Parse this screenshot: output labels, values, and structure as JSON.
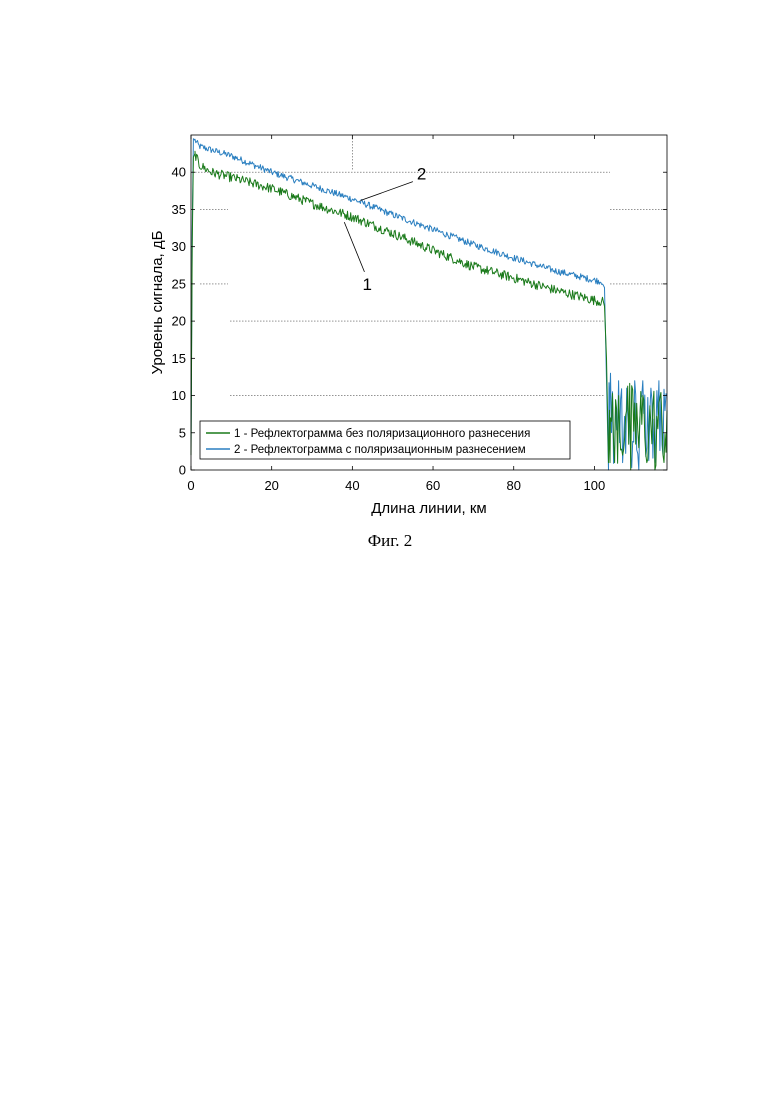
{
  "chart_data": {
    "type": "line",
    "xlabel": "Длина линии, км",
    "ylabel": "Уровень сигнала, дБ",
    "xlim": [
      0,
      118
    ],
    "ylim": [
      0,
      45
    ],
    "xticks": [
      "0",
      "20",
      "40",
      "60",
      "80",
      "100"
    ],
    "yticks": [
      "0",
      "5",
      "10",
      "15",
      "20",
      "25",
      "30",
      "35",
      "40"
    ],
    "grid": "dotted horizontal lines at 10, 20, 25, 35, 40; dotted vertical line at 40",
    "legend_position": "lower-left",
    "series": [
      {
        "name": "1 - Рефлектограмма без поляризационного разнесения",
        "color": "#1a7a1a",
        "x": [
          0,
          0.3,
          0.6,
          1,
          2,
          5,
          10,
          20,
          30,
          40,
          50,
          60,
          70,
          80,
          90,
          100,
          102,
          102.5,
          103,
          103.5,
          104,
          105,
          106,
          107,
          108,
          109,
          110,
          111,
          112,
          113,
          114,
          115,
          116,
          117,
          118
        ],
        "y": [
          2,
          30,
          42,
          42.5,
          41,
          40,
          39.3,
          37.8,
          35.8,
          34,
          31.8,
          29.5,
          27.3,
          25.8,
          24.2,
          22.8,
          22.6,
          22,
          15,
          1,
          7,
          1,
          10,
          2,
          8,
          0,
          9,
          3,
          10,
          1,
          6,
          0,
          9,
          2,
          8
        ]
      },
      {
        "name": "2 - Рефлектограмма с поляризационным разнесением",
        "color": "#2a7fc0",
        "x": [
          0,
          0.3,
          0.6,
          1,
          2,
          5,
          10,
          20,
          30,
          40,
          50,
          60,
          70,
          80,
          90,
          100,
          102,
          102.5,
          103,
          103.5,
          104,
          105,
          106,
          107,
          108,
          109,
          110,
          111,
          112,
          113,
          114,
          115,
          116,
          117,
          118
        ],
        "y": [
          3,
          32,
          44.5,
          44.3,
          43.5,
          43,
          42.2,
          40,
          38.2,
          36.4,
          34.3,
          32.3,
          30.3,
          28.5,
          26.8,
          25.5,
          25.3,
          24.5,
          12,
          0,
          13,
          3,
          12,
          1,
          11,
          2,
          12,
          0,
          12,
          3,
          11,
          1,
          12,
          2,
          10
        ]
      }
    ],
    "annotations": [
      {
        "text": "2",
        "x": 56,
        "y": 39,
        "arrow_to_x": 42,
        "arrow_to_y": 36.2
      },
      {
        "text": "1",
        "x": 42.5,
        "y": 25,
        "arrow_to_x": 38,
        "arrow_to_y": 33.3
      }
    ]
  },
  "caption": "Фиг. 2"
}
